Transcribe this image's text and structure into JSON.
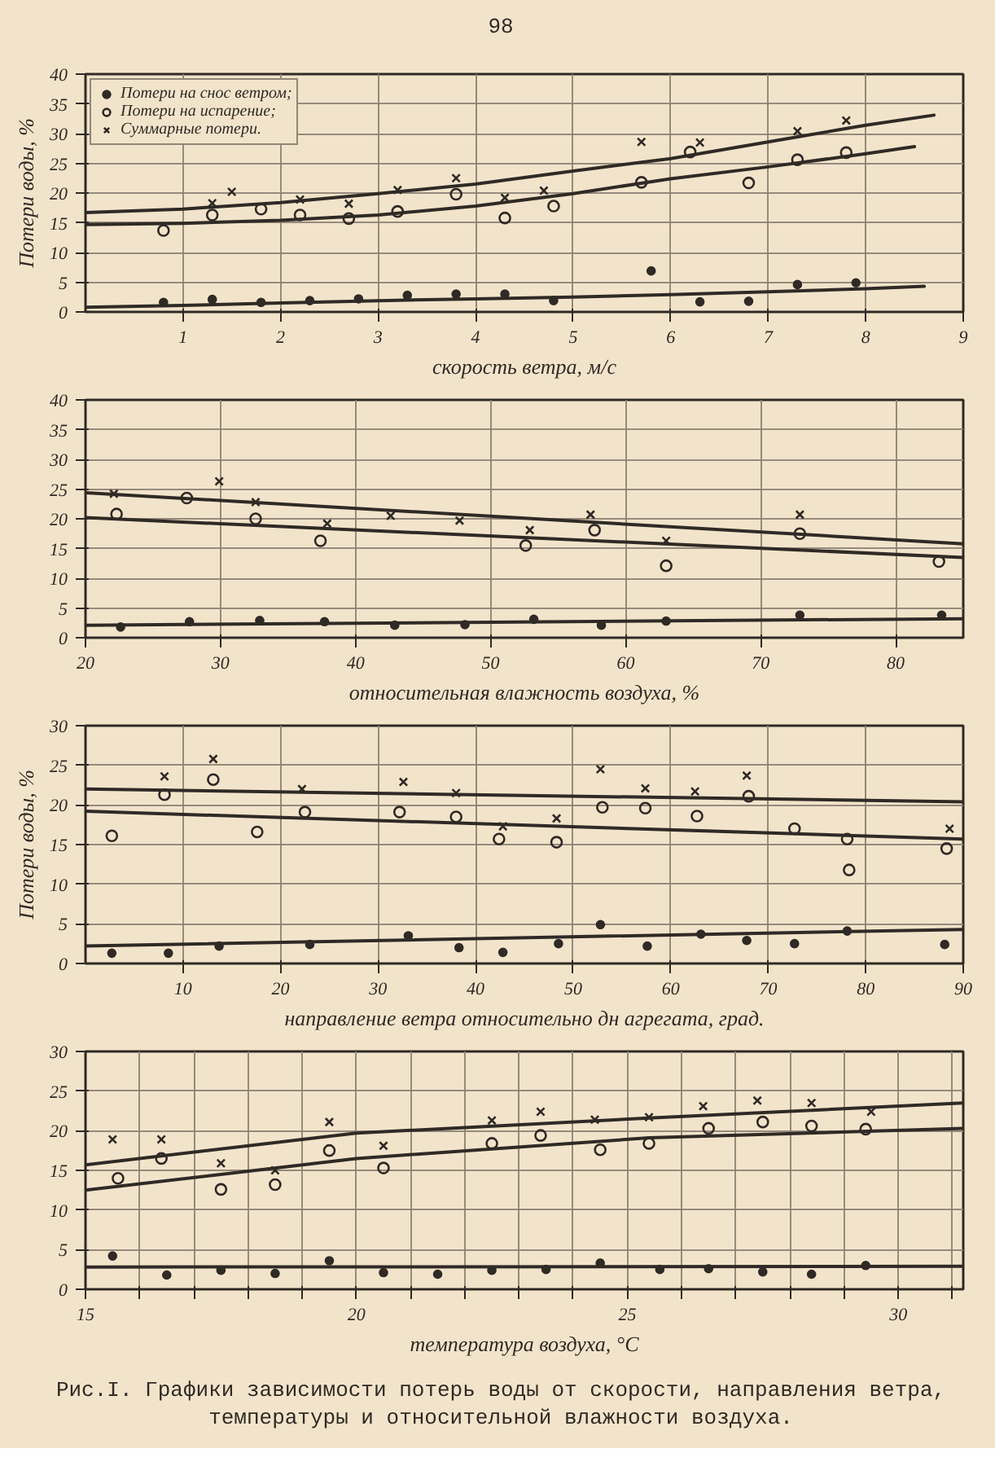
{
  "chart_data": [
    {
      "type": "other",
      "annotations": [
        "98"
      ]
    },
    {
      "type": "scatter",
      "xlabel": "скорость ветра, м/с",
      "ylabel": "Потери воды, %",
      "xlim": [
        0,
        9
      ],
      "ylim": [
        0,
        40
      ],
      "xticks": [
        1,
        2,
        3,
        4,
        5,
        6,
        7,
        8,
        9
      ],
      "yticks": [
        0,
        5,
        10,
        15,
        20,
        25,
        30,
        35,
        40
      ],
      "grid": true,
      "legend": "top left",
      "series": [
        {
          "name": "Потери на снос ветром;",
          "type": "scatter",
          "marker": "circle",
          "color": "#2f2a25",
          "x": [
            0.8,
            1.3,
            1.8,
            2.3,
            2.8,
            3.3,
            3.8,
            4.3,
            4.8,
            5.8,
            6.3,
            6.8,
            7.3,
            7.9
          ],
          "values": [
            1.6,
            2.1,
            1.6,
            1.9,
            2.2,
            2.8,
            3.0,
            3.0,
            1.9,
            6.9,
            1.7,
            1.8,
            4.6,
            4.9
          ]
        },
        {
          "name": "Потери на испарение;",
          "type": "scatter",
          "marker": "circle_open",
          "color": "#2f2a25",
          "x": [
            0.8,
            1.3,
            1.8,
            2.2,
            2.7,
            3.2,
            3.8,
            4.3,
            4.8,
            5.7,
            6.2,
            6.8,
            7.3,
            7.8
          ],
          "values": [
            13.7,
            16.3,
            17.3,
            16.3,
            15.7,
            16.9,
            19.8,
            15.8,
            17.8,
            21.8,
            26.9,
            21.7,
            25.6,
            26.8
          ]
        },
        {
          "name": "Суммарные потери.",
          "type": "scatter",
          "marker": "cross",
          "color": "#2f2a25",
          "x": [
            1.3,
            1.5,
            2.2,
            2.7,
            3.2,
            3.8,
            4.3,
            4.7,
            5.7,
            6.3,
            7.3,
            7.8
          ],
          "values": [
            18.3,
            20.2,
            18.9,
            18.2,
            20.5,
            22.5,
            19.2,
            20.4,
            28.6,
            28.5,
            30.4,
            32.2
          ]
        },
        {
          "type": "line",
          "color": "#2f2a25",
          "x": [
            0,
            1,
            2,
            3,
            4,
            5,
            6,
            7,
            8,
            8.7
          ],
          "values": [
            16.7,
            17.3,
            18.4,
            19.9,
            21.5,
            23.7,
            25.8,
            28.6,
            31.4,
            33.1
          ]
        },
        {
          "type": "line",
          "color": "#2f2a25",
          "x": [
            0,
            1,
            2,
            3,
            4,
            5,
            6,
            7,
            8,
            8.5
          ],
          "values": [
            14.7,
            14.9,
            15.4,
            16.3,
            17.8,
            19.9,
            22.4,
            24.4,
            26.6,
            27.8
          ]
        },
        {
          "type": "line",
          "color": "#2f2a25",
          "x": [
            0,
            1,
            2,
            3,
            4,
            5,
            6,
            7,
            8,
            8.6
          ],
          "values": [
            0.8,
            1.1,
            1.5,
            1.9,
            2.2,
            2.5,
            2.9,
            3.4,
            3.9,
            4.3
          ]
        }
      ]
    },
    {
      "type": "scatter",
      "xlabel": "относительная влажность воздуха, %",
      "xlim": [
        20,
        85
      ],
      "ylim": [
        0,
        40
      ],
      "xticks": [
        20,
        30,
        40,
        50,
        60,
        70,
        80
      ],
      "yticks": [
        0,
        5,
        10,
        15,
        20,
        25,
        30,
        35,
        40
      ],
      "grid": true,
      "series": [
        {
          "type": "scatter",
          "marker": "circle",
          "color": "#2f2a25",
          "x": [
            22.6,
            27.7,
            32.9,
            37.7,
            42.9,
            48.1,
            53.2,
            58.2,
            63.0,
            72.9,
            83.4
          ],
          "values": [
            1.8,
            2.7,
            2.9,
            2.7,
            2.1,
            2.2,
            3.1,
            2.1,
            2.8,
            3.8,
            3.8
          ]
        },
        {
          "type": "scatter",
          "marker": "circle_open",
          "color": "#2f2a25",
          "x": [
            22.3,
            27.5,
            32.6,
            37.4,
            52.6,
            57.7,
            63.0,
            72.9,
            83.2
          ],
          "values": [
            20.8,
            23.5,
            20.0,
            16.3,
            15.5,
            18.1,
            12.1,
            17.5,
            12.8
          ]
        },
        {
          "type": "scatter",
          "marker": "cross",
          "color": "#2f2a25",
          "x": [
            22.1,
            29.9,
            32.6,
            37.9,
            42.6,
            47.7,
            52.9,
            57.4,
            63.0,
            72.9
          ],
          "values": [
            24.2,
            26.3,
            22.8,
            19.2,
            20.5,
            19.7,
            18.1,
            20.7,
            16.3,
            20.7
          ]
        },
        {
          "type": "line",
          "color": "#2f2a25",
          "x": [
            20,
            85
          ],
          "values": [
            24.4,
            15.8
          ]
        },
        {
          "type": "line",
          "color": "#2f2a25",
          "x": [
            20,
            85
          ],
          "values": [
            20.2,
            13.5
          ]
        },
        {
          "type": "line",
          "color": "#2f2a25",
          "x": [
            20,
            85
          ],
          "values": [
            2.1,
            3.2
          ]
        }
      ]
    },
    {
      "type": "scatter",
      "xlabel": "направление ветра относительно дн агрегата, град.",
      "ylabel": "Потери воды, %",
      "xlim": [
        0,
        90
      ],
      "ylim": [
        0,
        30
      ],
      "xticks": [
        10,
        20,
        30,
        40,
        50,
        60,
        70,
        80,
        90
      ],
      "yticks": [
        0,
        5,
        10,
        15,
        20,
        25,
        30
      ],
      "grid": true,
      "series": [
        {
          "type": "scatter",
          "marker": "circle",
          "color": "#2f2a25",
          "x": [
            2.7,
            8.5,
            13.7,
            23.0,
            33.1,
            38.3,
            42.8,
            48.5,
            52.8,
            57.6,
            63.1,
            67.8,
            72.7,
            78.1,
            88.1
          ],
          "values": [
            1.3,
            1.3,
            2.2,
            2.4,
            3.5,
            2.0,
            1.4,
            2.5,
            4.9,
            2.2,
            3.7,
            2.9,
            2.5,
            4.1,
            2.4
          ]
        },
        {
          "type": "scatter",
          "marker": "circle_open",
          "color": "#2f2a25",
          "x": [
            2.7,
            8.1,
            13.1,
            17.6,
            22.5,
            32.2,
            38.0,
            42.4,
            48.3,
            53.0,
            57.4,
            62.7,
            68.0,
            72.7,
            78.1,
            78.3,
            88.3
          ],
          "values": [
            16.1,
            21.3,
            23.2,
            16.6,
            19.1,
            19.1,
            18.5,
            15.7,
            15.3,
            19.7,
            19.6,
            18.6,
            21.1,
            17.0,
            15.7,
            11.8,
            14.5
          ]
        },
        {
          "type": "scatter",
          "marker": "cross",
          "color": "#2f2a25",
          "x": [
            8.1,
            13.1,
            22.2,
            32.6,
            38.0,
            42.8,
            48.3,
            52.8,
            57.4,
            62.5,
            67.8,
            88.6
          ],
          "values": [
            23.6,
            25.8,
            22.0,
            22.9,
            21.5,
            17.3,
            18.3,
            24.5,
            22.1,
            21.7,
            23.7,
            17.0
          ]
        },
        {
          "type": "line",
          "color": "#2f2a25",
          "x": [
            0,
            90
          ],
          "values": [
            22.0,
            20.4
          ]
        },
        {
          "type": "line",
          "color": "#2f2a25",
          "x": [
            0,
            90
          ],
          "values": [
            19.2,
            15.7
          ]
        },
        {
          "type": "line",
          "color": "#2f2a25",
          "x": [
            0,
            90
          ],
          "values": [
            2.2,
            4.3
          ]
        }
      ]
    },
    {
      "type": "scatter",
      "xlabel": "температура воздуха, °С",
      "xlim": [
        15,
        31.2
      ],
      "ylim": [
        0,
        30
      ],
      "xticks": [
        15,
        {
          "value": 16,
          "label": null
        },
        {
          "value": 17,
          "label": null
        },
        {
          "value": 18,
          "label": null
        },
        {
          "value": 19,
          "label": null
        },
        20,
        {
          "value": 21,
          "label": null
        },
        {
          "value": 22,
          "label": null
        },
        {
          "value": 23,
          "label": null
        },
        {
          "value": 24,
          "label": null
        },
        25,
        {
          "value": 26,
          "label": null
        },
        {
          "value": 27,
          "label": null
        },
        {
          "value": 28,
          "label": null
        },
        {
          "value": 29,
          "label": null
        },
        30,
        {
          "value": 31,
          "label": null
        }
      ],
      "yticks": [
        0,
        5,
        10,
        15,
        20,
        25,
        30
      ],
      "grid": true,
      "series": [
        {
          "type": "scatter",
          "marker": "circle",
          "color": "#2f2a25",
          "x": [
            15.5,
            16.5,
            17.5,
            18.5,
            19.5,
            20.5,
            21.5,
            22.5,
            23.5,
            24.5,
            25.6,
            26.5,
            27.5,
            28.4,
            29.4
          ],
          "values": [
            4.2,
            1.8,
            2.4,
            2.0,
            3.6,
            2.1,
            1.9,
            2.4,
            2.5,
            3.3,
            2.5,
            2.6,
            2.2,
            1.9,
            3.0
          ]
        },
        {
          "type": "scatter",
          "marker": "circle_open",
          "color": "#2f2a25",
          "x": [
            15.6,
            16.4,
            17.5,
            18.5,
            19.5,
            20.5,
            22.5,
            23.4,
            24.5,
            25.4,
            26.5,
            27.5,
            28.4,
            29.4
          ],
          "values": [
            14.0,
            16.5,
            12.6,
            13.2,
            17.5,
            15.3,
            18.4,
            19.4,
            17.6,
            18.4,
            20.3,
            21.1,
            20.6,
            20.2
          ]
        },
        {
          "type": "scatter",
          "marker": "cross",
          "color": "#2f2a25",
          "x": [
            15.5,
            16.4,
            17.5,
            18.5,
            19.5,
            20.5,
            22.5,
            23.4,
            24.4,
            25.4,
            26.4,
            27.4,
            28.4,
            29.5
          ],
          "values": [
            18.9,
            18.9,
            15.9,
            15.0,
            21.1,
            18.1,
            21.3,
            22.4,
            21.4,
            21.7,
            23.1,
            23.8,
            23.5,
            22.4
          ]
        },
        {
          "type": "line",
          "color": "#2f2a25",
          "x": [
            15,
            20,
            25.4,
            31.2
          ],
          "values": [
            15.7,
            19.7,
            21.6,
            23.5
          ]
        },
        {
          "type": "line",
          "color": "#2f2a25",
          "x": [
            15,
            20,
            25.4,
            31.2
          ],
          "values": [
            12.5,
            16.5,
            19.1,
            20.3
          ]
        },
        {
          "type": "line",
          "color": "#2f2a25",
          "x": [
            15,
            31.2
          ],
          "values": [
            2.8,
            2.9
          ]
        }
      ]
    },
    {
      "type": "other",
      "annotations": [
        "Рис.I. Графики зависимости потерь воды от скорости, направления ветра, температуры и относительной влажности воздуха."
      ]
    }
  ]
}
